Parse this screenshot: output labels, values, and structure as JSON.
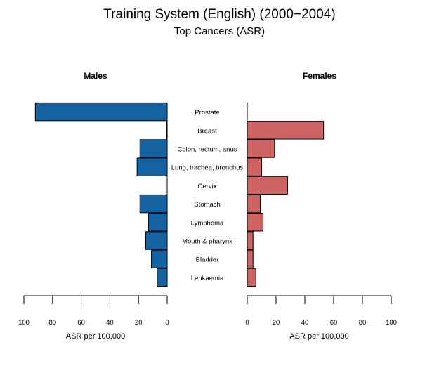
{
  "title": "Training System (English) (2000−2004)",
  "subtitle": "Top Cancers (ASR)",
  "colors": {
    "males": "#1463a0",
    "females": "#cd6363",
    "stroke": "#000000"
  },
  "chart_data": {
    "type": "bar",
    "orientation": "horizontal",
    "layout": "back-to-back pyramid",
    "categories": [
      "Prostate",
      "Breast",
      "Colon, rectum, anus",
      "Lung, trachea, bronchus",
      "Cervix",
      "Stomach",
      "Lymphoma",
      "Mouth & pharynx",
      "Bladder",
      "Leukaemia"
    ],
    "series": [
      {
        "name": "Males",
        "values": [
          92,
          0.5,
          19,
          21,
          0,
          19,
          13,
          15,
          11,
          7
        ]
      },
      {
        "name": "Females",
        "values": [
          0,
          53,
          19,
          10,
          28,
          9,
          11,
          4,
          4,
          6
        ]
      }
    ],
    "xlabel": "ASR per 100,000",
    "xlim": [
      0,
      100
    ],
    "ticks": [
      0,
      20,
      40,
      60,
      80,
      100
    ],
    "grid": false
  }
}
